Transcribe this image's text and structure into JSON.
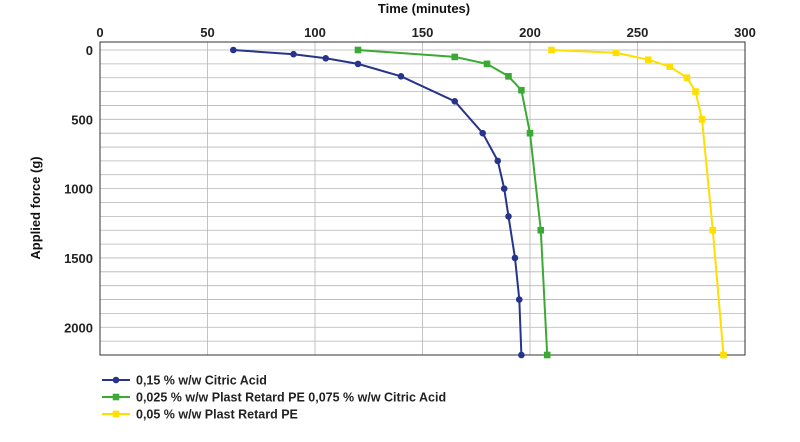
{
  "chart_data": {
    "type": "line",
    "xlabel": "Time (minutes)",
    "ylabel": "Applied force (g)",
    "x_axis_position": "top",
    "y_inverted": true,
    "xlim": [
      0,
      300
    ],
    "ylim": [
      0,
      2200
    ],
    "x_ticks": [
      0,
      50,
      100,
      150,
      200,
      250,
      300
    ],
    "y_ticks": [
      0,
      500,
      1000,
      1500,
      2000
    ],
    "y_gridline_step": 100,
    "x_gridline_step": 50,
    "legend_position": "bottom-left",
    "series": [
      {
        "name": "0,15 % w/w Citric Acid",
        "color": "#27348b",
        "marker": "circle",
        "points": [
          [
            62,
            0
          ],
          [
            90,
            30
          ],
          [
            105,
            60
          ],
          [
            120,
            100
          ],
          [
            140,
            190
          ],
          [
            165,
            370
          ],
          [
            178,
            600
          ],
          [
            185,
            800
          ],
          [
            188,
            1000
          ],
          [
            190,
            1200
          ],
          [
            193,
            1500
          ],
          [
            195,
            1800
          ],
          [
            196,
            2200
          ]
        ]
      },
      {
        "name": "0,025 % w/w Plast Retard PE 0,075 % w/w Citric Acid",
        "color": "#3aaa35",
        "marker": "square",
        "points": [
          [
            120,
            0
          ],
          [
            165,
            50
          ],
          [
            180,
            100
          ],
          [
            190,
            190
          ],
          [
            196,
            290
          ],
          [
            200,
            600
          ],
          [
            205,
            1300
          ],
          [
            208,
            2200
          ]
        ]
      },
      {
        "name": "0,05 % w/w Plast Retard PE",
        "color": "#ffde00",
        "marker": "square",
        "points": [
          [
            210,
            0
          ],
          [
            240,
            20
          ],
          [
            255,
            70
          ],
          [
            265,
            120
          ],
          [
            273,
            200
          ],
          [
            277,
            300
          ],
          [
            280,
            500
          ],
          [
            285,
            1300
          ],
          [
            290,
            2200
          ]
        ]
      }
    ]
  }
}
